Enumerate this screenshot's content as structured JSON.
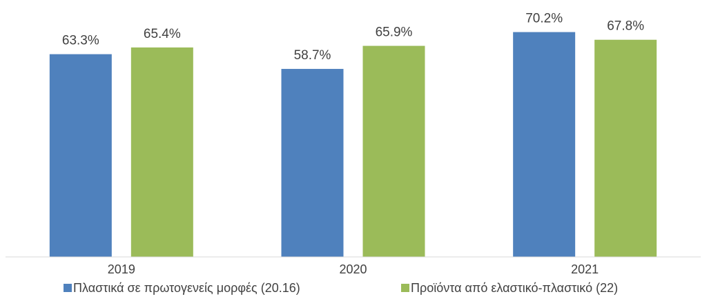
{
  "chart_data": {
    "type": "bar",
    "title": "",
    "xlabel": "",
    "ylabel": "",
    "categories": [
      "2019",
      "2020",
      "2021"
    ],
    "ylim": [
      0,
      75
    ],
    "grid": false,
    "legend_position": "bottom",
    "series": [
      {
        "name": "Πλαστικά σε πρωτογενείς μορφές (20.16)",
        "color": "#4f81bd",
        "values": [
          63.3,
          58.7,
          70.2
        ],
        "labels": [
          "63.3%",
          "58.7%",
          "70.2%"
        ]
      },
      {
        "name": "Προϊόντα από ελαστικό-πλαστικό (22)",
        "color": "#9bbb59",
        "values": [
          65.4,
          65.9,
          67.8
        ],
        "labels": [
          "65.4%",
          "65.9%",
          "67.8%"
        ]
      }
    ]
  }
}
